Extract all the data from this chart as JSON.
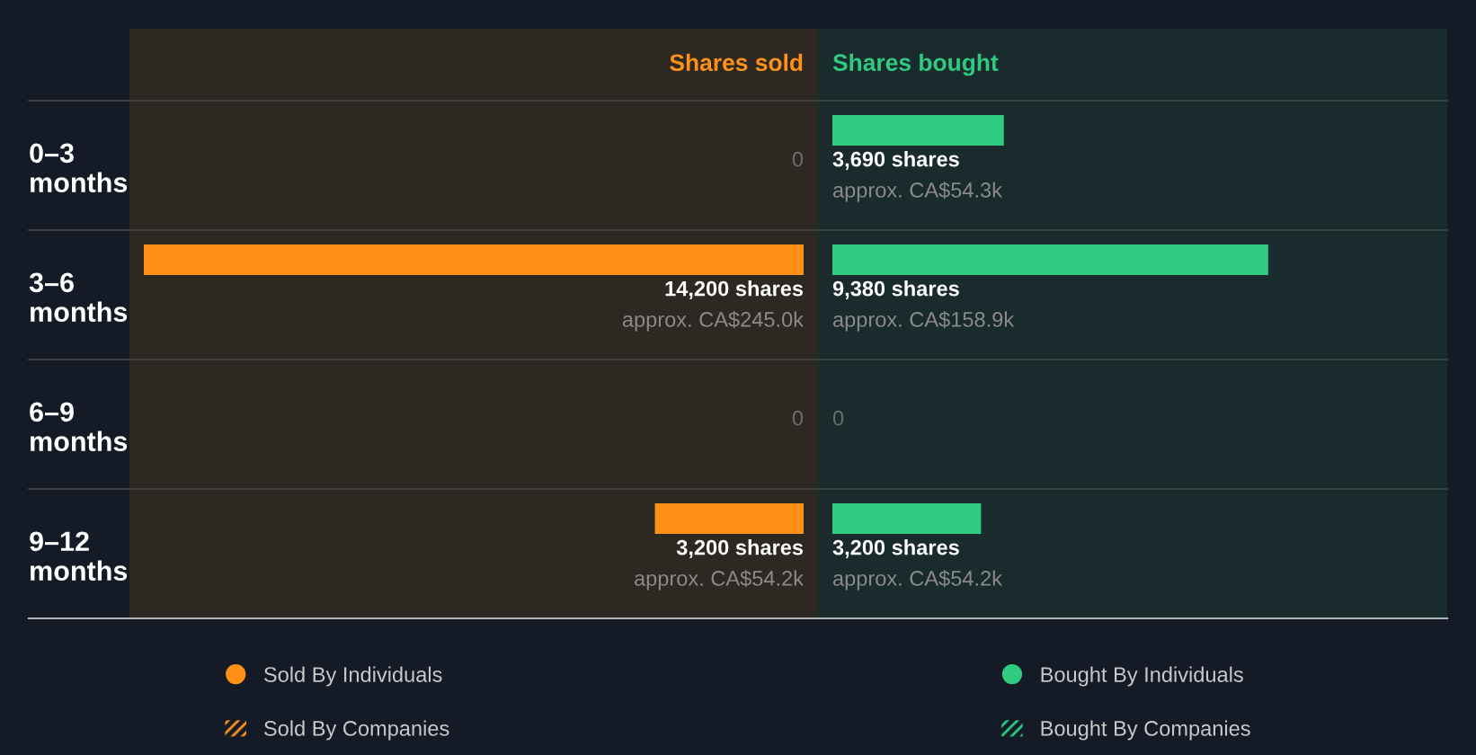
{
  "chart_data": [
    {
      "type": "bar",
      "orientation": "horizontal",
      "title": "Shares sold",
      "categories": [
        "0–3\nmonths",
        "3–6\nmonths",
        "6–9\nmonths",
        "9–12\nmonths"
      ],
      "tick_labels": "y",
      "legend": "bottom",
      "grid": false,
      "annotations": [
        "approx. CA$245.0k",
        "approx. CA$54.2k"
      ],
      "series": [
        {
          "name": "Sold By Individuals",
          "color": "#ff9216",
          "values": [
            0,
            14200,
            0,
            3200
          ],
          "value_labels": [
            "0",
            "14,200 shares",
            "0",
            "3,200 shares"
          ]
        },
        {
          "name": "Sold By Companies",
          "color": "#ff9216",
          "values": [
            null,
            null,
            null,
            null
          ]
        }
      ]
    },
    {
      "type": "bar",
      "orientation": "horizontal",
      "title": "Shares bought",
      "categories": [
        null,
        null,
        null,
        null
      ],
      "tick_labels": false,
      "legend": "bottom",
      "grid": false,
      "annotations": [
        "approx. CA$54.3k",
        "approx. CA$158.9k",
        "approx. CA$54.2k"
      ],
      "series": [
        {
          "name": "Bought By Individuals",
          "color": "#2ecb80",
          "values": [
            3690,
            9380,
            0,
            3200
          ],
          "value_labels": [
            "3,690 shares",
            "9,380 shares",
            "0",
            "3,200 shares"
          ]
        },
        {
          "name": "Bought By Companies",
          "color": "#2ecb80",
          "values": [
            null,
            null,
            null,
            null
          ]
        }
      ]
    }
  ]
}
